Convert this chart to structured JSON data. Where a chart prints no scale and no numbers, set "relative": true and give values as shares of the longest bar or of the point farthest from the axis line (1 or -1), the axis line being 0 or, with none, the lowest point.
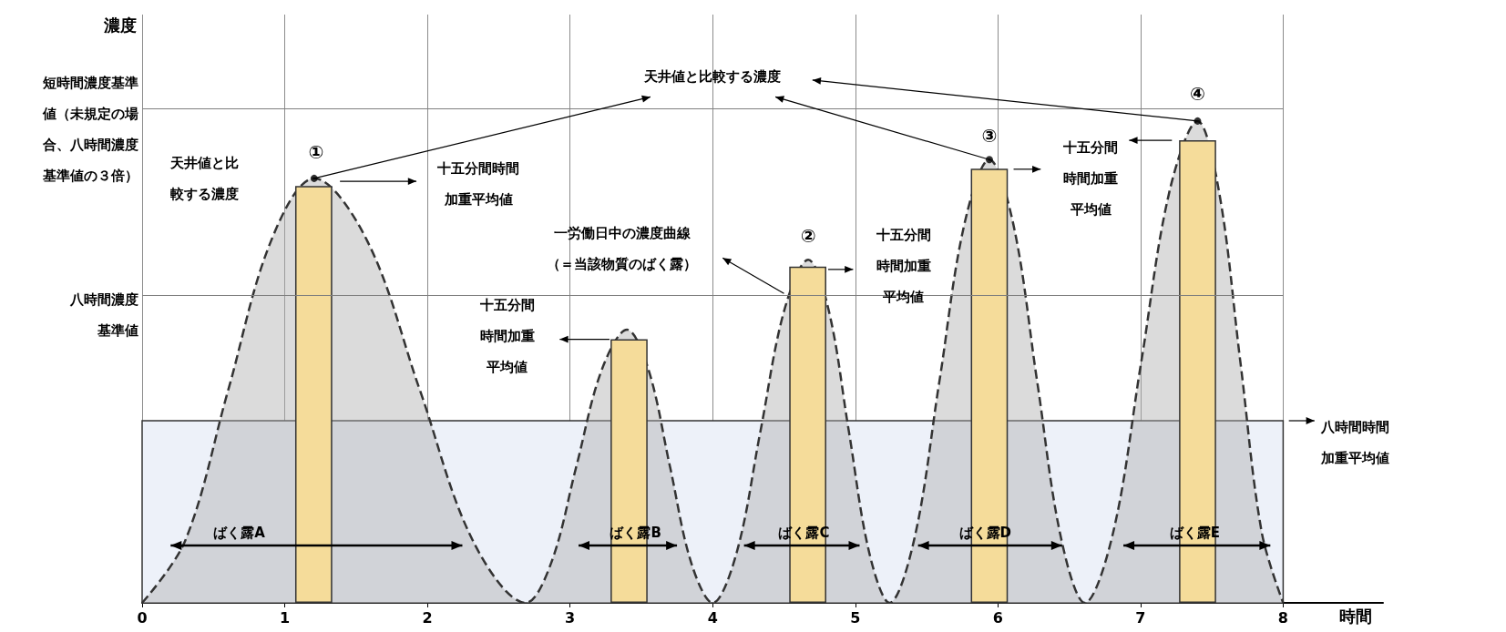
{
  "chart_data": {
    "type": "area",
    "xlabel": "時間",
    "relative": true,
    "xlim": [
      0,
      8.7
    ],
    "xticks": [
      0,
      1,
      2,
      3,
      4,
      5,
      6,
      7,
      8
    ],
    "grid": "x",
    "line_style": "dashed",
    "series": [
      {
        "color": "#333333",
        "x": [
          0,
          0.302,
          0.603,
          0.905,
          1.206,
          1.577,
          1.948,
          2.319,
          2.69,
          2.868,
          3.045,
          3.223,
          3.4,
          3.55,
          3.7,
          3.85,
          4.0,
          4.168,
          4.335,
          4.503,
          4.67,
          4.813,
          4.955,
          5.098,
          5.24,
          5.415,
          5.59,
          5.765,
          5.94,
          6.108,
          6.275,
          6.443,
          6.61,
          6.808,
          7.005,
          7.203,
          7.4,
          7.55,
          7.7,
          7.85,
          8.0
        ],
        "values": [
          0,
          0.129,
          0.441,
          0.752,
          0.881,
          0.752,
          0.441,
          0.129,
          0,
          0.083,
          0.284,
          0.484,
          0.567,
          0.484,
          0.284,
          0.083,
          0,
          0.104,
          0.356,
          0.608,
          0.712,
          0.608,
          0.356,
          0.104,
          0,
          0.134,
          0.46,
          0.786,
          0.92,
          0.786,
          0.46,
          0.134,
          0,
          0.146,
          0.5,
          0.854,
          1.0,
          0.854,
          0.5,
          0.146,
          0
        ]
      },
      {
        "type": "bar",
        "color": "#f5dc9a",
        "x": [
          1.203,
          3.414,
          4.667,
          5.94,
          7.4
        ],
        "values": [
          0.865,
          0.547,
          0.698,
          0.901,
          0.96
        ]
      },
      {
        "type": "scatter",
        "color": "#000000",
        "x": [
          1.206,
          5.94,
          7.4
        ],
        "values": [
          0.881,
          0.92,
          1.0
        ]
      }
    ],
    "bands": [
      {
        "axis": "y",
        "from": 0,
        "to": 0.378,
        "label": "八時間時間加重平均値",
        "color": "#edf1f9"
      }
    ],
    "ref_lines": [
      {
        "axis": "y",
        "value": 1.026,
        "label": "短時間濃度基準値（未規定の場合、八時間濃度基準値の３倍）",
        "color": "#7f7f7f"
      },
      {
        "axis": "y",
        "value": 0.638,
        "label": "八時間濃度基準値",
        "color": "#7f7f7f"
      }
    ],
    "annotations": [
      "天井値と比較する濃度",
      "天井値と比較する濃度",
      "①",
      "②",
      "③",
      "④",
      "十五分間時間加重平均値",
      "十五分間時間加重平均値",
      "十五分間時間加重平均値",
      "十五分間時間加重平均値",
      "一労働日中の濃度曲線（＝当該物質のばく露）",
      "ばく露A",
      "ばく露B",
      "ばく露C",
      "ばく露D",
      "ばく露E",
      "濃度"
    ]
  }
}
